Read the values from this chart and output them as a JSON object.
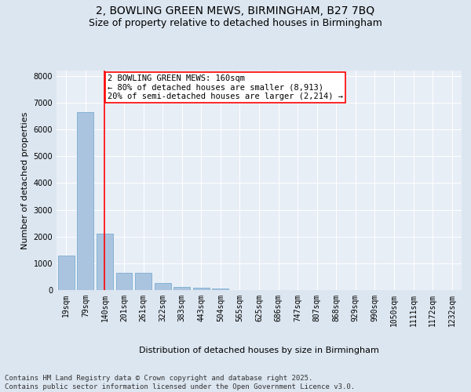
{
  "title_line1": "2, BOWLING GREEN MEWS, BIRMINGHAM, B27 7BQ",
  "title_line2": "Size of property relative to detached houses in Birmingham",
  "xlabel": "Distribution of detached houses by size in Birmingham",
  "ylabel": "Number of detached properties",
  "categories": [
    "19sqm",
    "79sqm",
    "140sqm",
    "201sqm",
    "261sqm",
    "322sqm",
    "383sqm",
    "443sqm",
    "504sqm",
    "565sqm",
    "625sqm",
    "686sqm",
    "747sqm",
    "807sqm",
    "868sqm",
    "929sqm",
    "990sqm",
    "1050sqm",
    "1111sqm",
    "1172sqm",
    "1232sqm"
  ],
  "values": [
    1300,
    6650,
    2100,
    650,
    650,
    270,
    130,
    90,
    50,
    10,
    0,
    0,
    0,
    0,
    0,
    0,
    0,
    0,
    0,
    0,
    0
  ],
  "bar_color": "#aac4e0",
  "bar_edge_color": "#7aadd0",
  "vline_x_index": 2,
  "vline_color": "red",
  "annotation_text": "2 BOWLING GREEN MEWS: 160sqm\n← 80% of detached houses are smaller (8,913)\n20% of semi-detached houses are larger (2,214) →",
  "annotation_box_color": "white",
  "annotation_box_edge": "red",
  "ylim": [
    0,
    8200
  ],
  "yticks": [
    0,
    1000,
    2000,
    3000,
    4000,
    5000,
    6000,
    7000,
    8000
  ],
  "bg_color": "#dce6f0",
  "plot_bg_color": "#e8eef6",
  "footer_line1": "Contains HM Land Registry data © Crown copyright and database right 2025.",
  "footer_line2": "Contains public sector information licensed under the Open Government Licence v3.0.",
  "title_fontsize": 10,
  "subtitle_fontsize": 9,
  "axis_label_fontsize": 8,
  "tick_fontsize": 7,
  "annotation_fontsize": 7.5,
  "footer_fontsize": 6.5
}
